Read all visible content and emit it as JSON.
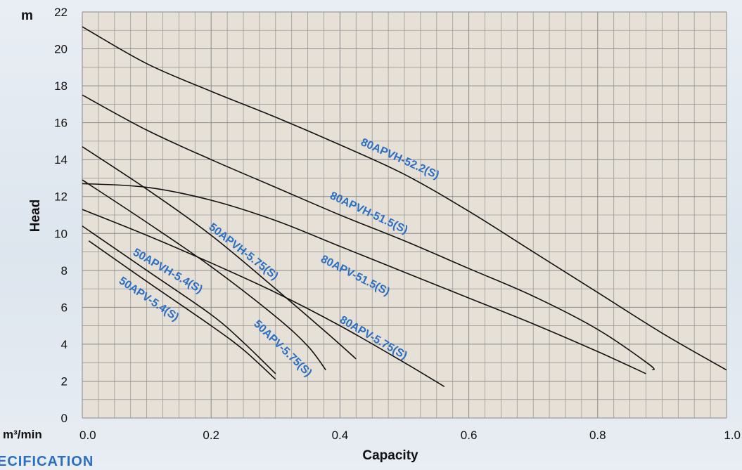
{
  "chart_data": {
    "type": "line",
    "xlabel": "Capacity",
    "ylabel": "Head",
    "x_unit": "m³/min",
    "y_unit": "m",
    "xlim": [
      0,
      1.0
    ],
    "ylim": [
      0,
      22
    ],
    "x_ticks": [
      "0.0",
      "0.2",
      "0.4",
      "0.6",
      "0.8",
      "1.0"
    ],
    "y_ticks": [
      "0",
      "2",
      "4",
      "6",
      "8",
      "10",
      "12",
      "14",
      "16",
      "18",
      "20",
      "22"
    ],
    "grid": true,
    "series": [
      {
        "name": "80APVH-52.2(S)",
        "x": [
          0,
          0.1,
          0.2,
          0.3,
          0.4,
          0.5,
          0.6,
          0.7,
          0.8,
          0.9,
          1.0
        ],
        "y": [
          21.2,
          19.2,
          17.7,
          16.3,
          14.8,
          13.2,
          11.2,
          9.0,
          6.8,
          4.6,
          2.6
        ]
      },
      {
        "name": "80APVH-51.5(S)",
        "x": [
          0,
          0.1,
          0.2,
          0.3,
          0.4,
          0.5,
          0.6,
          0.7,
          0.8,
          0.88,
          0.885
        ],
        "y": [
          17.5,
          15.6,
          14.0,
          12.5,
          11.0,
          9.6,
          8.1,
          6.6,
          4.8,
          2.9,
          2.6
        ]
      },
      {
        "name": "80APV-51.5(S)",
        "x": [
          0,
          0.1,
          0.2,
          0.3,
          0.4,
          0.5,
          0.6,
          0.7,
          0.8,
          0.875
        ],
        "y": [
          12.7,
          12.5,
          11.8,
          10.7,
          9.3,
          7.9,
          6.5,
          5.1,
          3.6,
          2.4
        ]
      },
      {
        "name": "80APV-5.75(S)",
        "x": [
          0,
          0.1,
          0.2,
          0.3,
          0.4,
          0.5,
          0.562
        ],
        "y": [
          11.3,
          9.9,
          8.4,
          6.8,
          5.0,
          3.0,
          1.7
        ]
      },
      {
        "name": "50APVH-5.75(S)",
        "x": [
          0,
          0.1,
          0.2,
          0.3,
          0.38,
          0.425
        ],
        "y": [
          14.7,
          12.4,
          9.9,
          7.0,
          4.6,
          3.2
        ]
      },
      {
        "name": "50APV-5.75(S)",
        "x": [
          0,
          0.1,
          0.2,
          0.3,
          0.35,
          0.378
        ],
        "y": [
          12.9,
          10.6,
          8.2,
          5.5,
          3.9,
          2.6
        ]
      },
      {
        "name": "50APVH-5.4(S)",
        "x": [
          0,
          0.1,
          0.2,
          0.25,
          0.3
        ],
        "y": [
          10.4,
          8.0,
          5.6,
          4.1,
          2.4
        ]
      },
      {
        "name": "50APV-5.4(S)",
        "x": [
          0.01,
          0.1,
          0.2,
          0.25,
          0.3
        ],
        "y": [
          9.6,
          7.4,
          5.0,
          3.7,
          2.1
        ]
      }
    ]
  },
  "footer_text": "ECIFICATION"
}
